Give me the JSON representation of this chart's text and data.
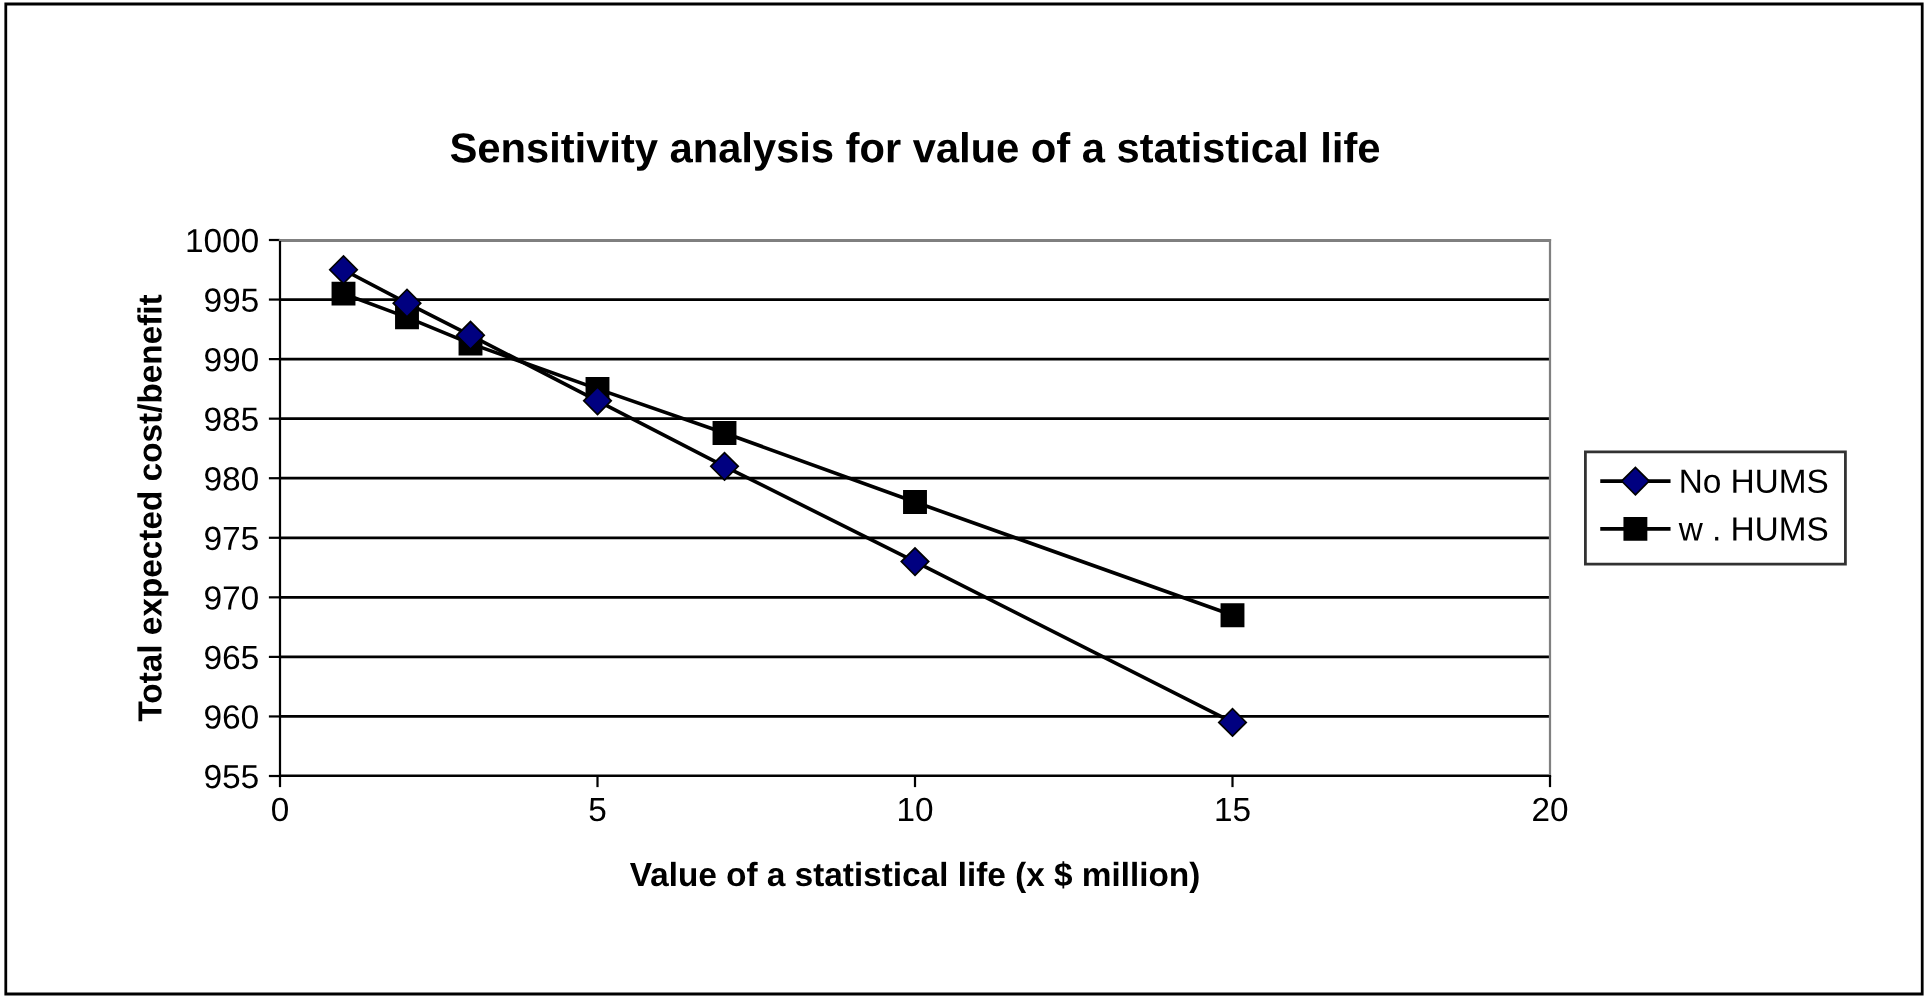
{
  "chart_data": {
    "type": "line",
    "title": "Sensitivity analysis for value of a statistical life",
    "xlabel": "Value of a statistical life (x $ million)",
    "ylabel": "Total expected cost/benefit",
    "x": [
      1,
      2,
      3,
      5,
      7,
      10,
      15
    ],
    "series": [
      {
        "name": "No HUMS",
        "color": "#000080",
        "marker": "diamond",
        "values": [
          997.5,
          994.7,
          992,
          986.5,
          981,
          973,
          959.5
        ]
      },
      {
        "name": "w . HUMS",
        "color": "#000000",
        "marker": "square",
        "values": [
          995.5,
          993.5,
          991.3,
          987.5,
          983.8,
          978,
          968.5
        ]
      }
    ],
    "xlim": [
      0,
      20
    ],
    "xticks": [
      0,
      5,
      10,
      15,
      20
    ],
    "ylim": [
      955,
      1000
    ],
    "yticks": [
      955,
      960,
      965,
      970,
      975,
      980,
      985,
      990,
      995,
      1000
    ],
    "grid": "y",
    "legend": "right",
    "line_style": "solid"
  }
}
